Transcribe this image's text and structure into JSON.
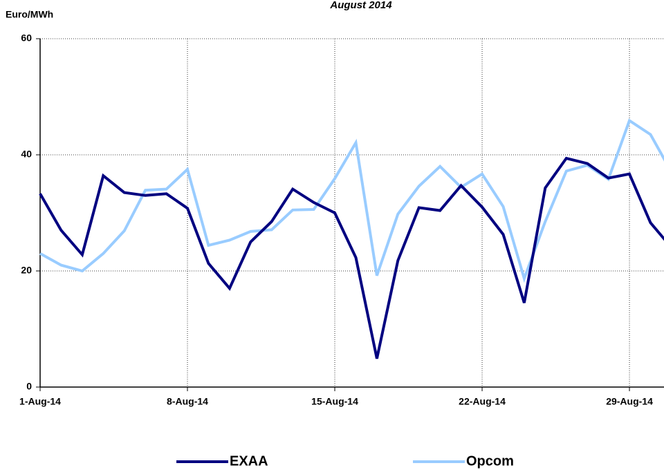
{
  "chart_data": {
    "type": "line",
    "title": "August 2014",
    "y_label": "Euro/MWh",
    "categories": [
      "1-Aug-14",
      null,
      null,
      null,
      null,
      null,
      null,
      "8-Aug-14",
      null,
      null,
      null,
      null,
      null,
      null,
      "15-Aug-14",
      null,
      null,
      null,
      null,
      null,
      null,
      "22-Aug-14",
      null,
      null,
      null,
      null,
      null,
      null,
      "29-Aug-14",
      null,
      null
    ],
    "series": [
      {
        "name": "EXAA",
        "color": "#000080",
        "values": [
          33.3,
          27,
          22.8,
          36.4,
          33.5,
          33,
          33.3,
          30.8,
          21.3,
          17,
          25,
          28.5,
          34.1,
          31.8,
          30,
          22.3,
          4.9,
          21.8,
          30.9,
          30.4,
          34.7,
          31,
          26.3,
          14.5,
          34.3,
          39.4,
          38.5,
          36,
          36.7,
          28.3,
          24
        ]
      },
      {
        "name": "Opcom",
        "color": "#99ccff",
        "values": [
          23,
          21,
          20,
          23,
          26.9,
          33.9,
          34.1,
          37.5,
          24.4,
          25.3,
          26.8,
          27.1,
          30.5,
          30.6,
          35.9,
          42.1,
          19.2,
          29.8,
          34.6,
          38,
          34.4,
          36.7,
          31.1,
          18.7,
          28.5,
          37.2,
          38.2,
          35.8,
          45.9,
          43.5,
          37
        ]
      }
    ],
    "ylim": [
      0,
      60
    ],
    "yticks": [
      0,
      20,
      40,
      60
    ],
    "grid": true,
    "legend": "bottom"
  }
}
